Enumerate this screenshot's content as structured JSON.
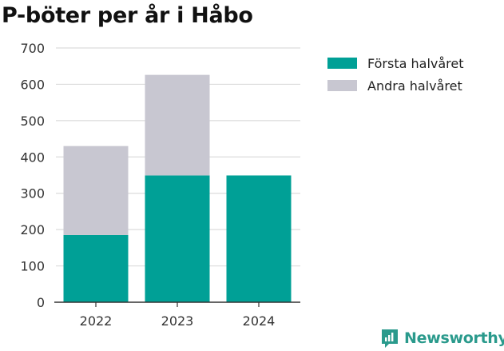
{
  "chart_data": {
    "type": "bar",
    "stacked": true,
    "title": "P-böter per år i Håbo",
    "categories": [
      "2022",
      "2023",
      "2024"
    ],
    "series": [
      {
        "name": "Första halvåret",
        "color": "#00a096",
        "values": [
          185,
          349,
          349
        ]
      },
      {
        "name": "Andra halvåret",
        "color": "#c8c7d1",
        "values": [
          245,
          277,
          0
        ]
      }
    ],
    "ylim": [
      0,
      700
    ],
    "yticks": [
      "0",
      "100",
      "200",
      "300",
      "400",
      "500",
      "600",
      "700"
    ],
    "xlabel": "",
    "ylabel": "",
    "grid": true,
    "legend_position": "right"
  },
  "brand": {
    "name": "Newsworthy",
    "color": "#2a9a8c"
  }
}
